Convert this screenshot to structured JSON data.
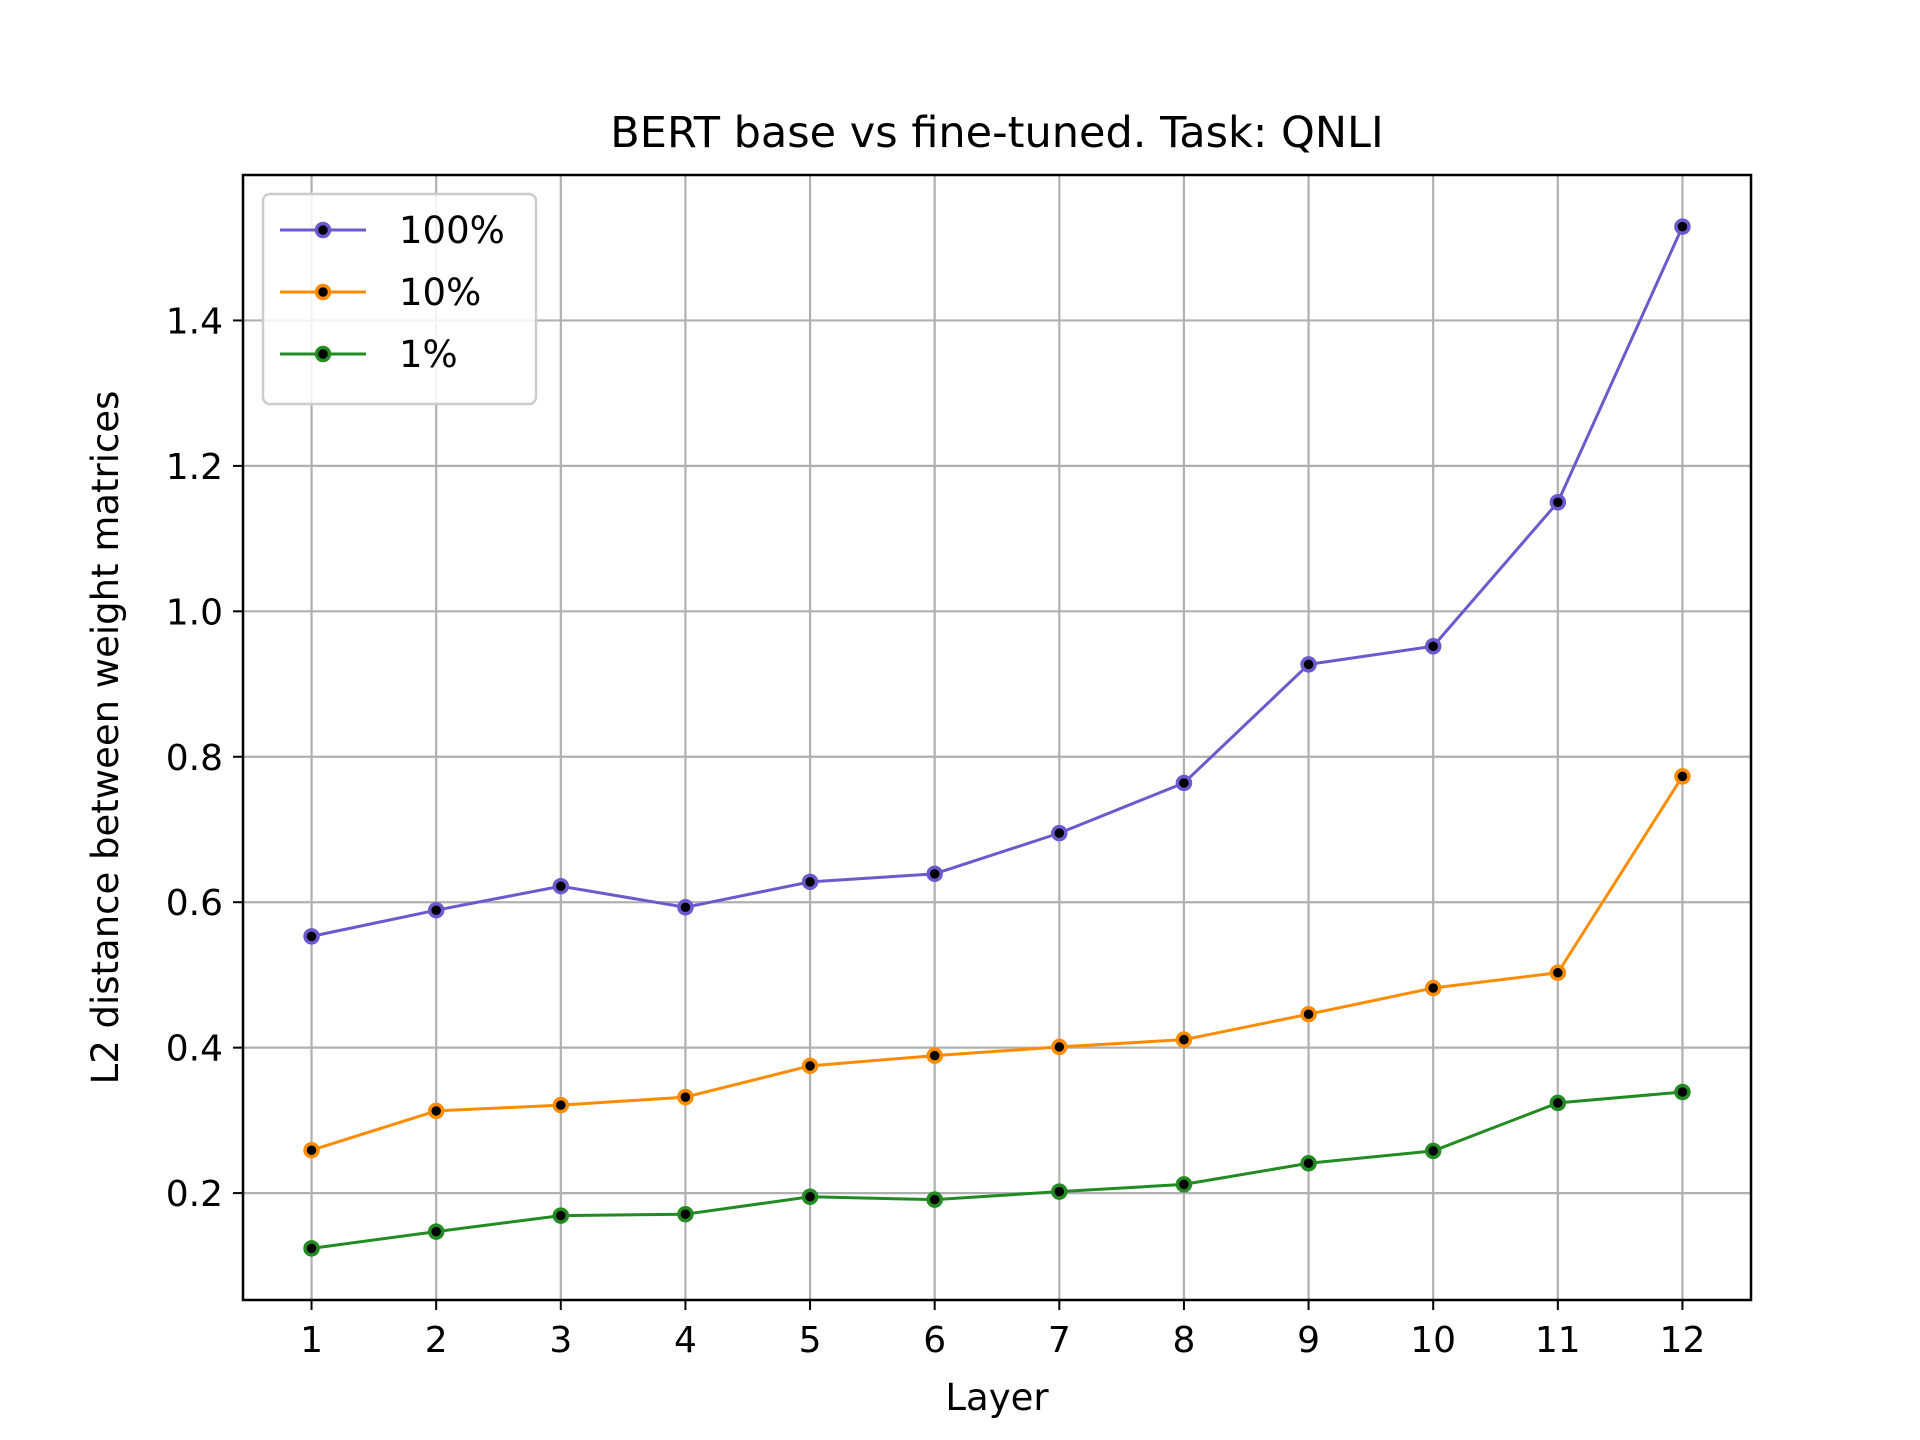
{
  "chart_data": {
    "type": "line",
    "title": "BERT base vs fine-tuned. Task: QNLI",
    "xlabel": "Layer",
    "ylabel": "L2 distance between weight matrices",
    "x": [
      1,
      2,
      3,
      4,
      5,
      6,
      7,
      8,
      9,
      10,
      11,
      12
    ],
    "xticks": [
      "1",
      "2",
      "3",
      "4",
      "5",
      "6",
      "7",
      "8",
      "9",
      "10",
      "11",
      "12"
    ],
    "xlim": [
      0.45,
      12.55
    ],
    "yticks": [
      "0.2",
      "0.4",
      "0.6",
      "0.8",
      "1.0",
      "1.2",
      "1.4"
    ],
    "ytick_values": [
      0.2,
      0.4,
      0.6,
      0.8,
      1.0,
      1.2,
      1.4
    ],
    "ylim": [
      0.053,
      1.6
    ],
    "grid": true,
    "legend_position": "upper-left",
    "series": [
      {
        "name": "100%",
        "color": "#6a5acd",
        "values": [
          0.553,
          0.589,
          0.622,
          0.593,
          0.628,
          0.639,
          0.695,
          0.764,
          0.927,
          0.952,
          1.15,
          1.529
        ]
      },
      {
        "name": "10%",
        "color": "#ff8c00",
        "values": [
          0.259,
          0.313,
          0.321,
          0.332,
          0.375,
          0.389,
          0.401,
          0.411,
          0.446,
          0.482,
          0.503,
          0.773
        ]
      },
      {
        "name": "1%",
        "color": "#228b22",
        "values": [
          0.124,
          0.147,
          0.169,
          0.171,
          0.195,
          0.191,
          0.202,
          0.212,
          0.241,
          0.258,
          0.324,
          0.339
        ]
      }
    ]
  }
}
